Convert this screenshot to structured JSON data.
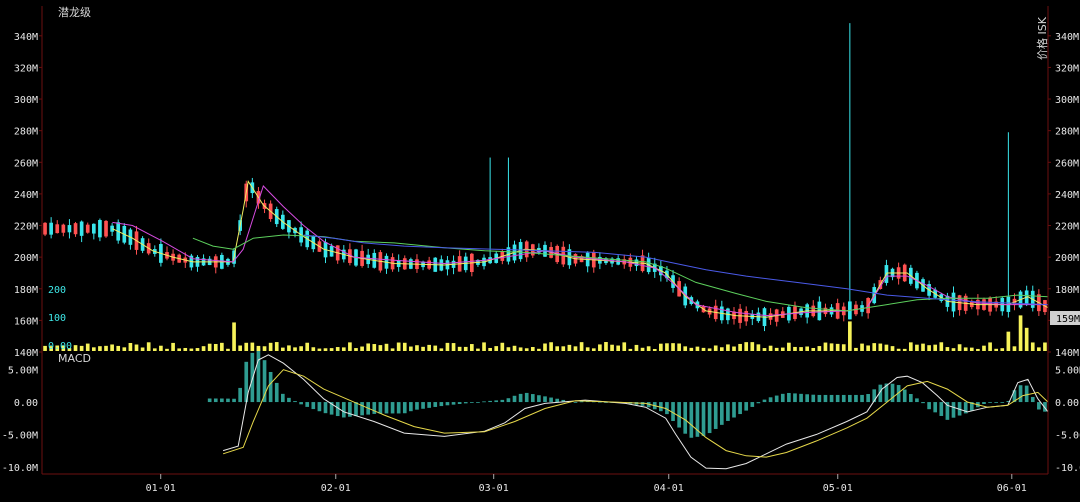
{
  "chart_data": {
    "type": "candlestick",
    "title": "潜龙级",
    "right_axis_label": "价格 ISK",
    "current_price_label": "159M",
    "macd_label": "MACD",
    "colors": {
      "up": "#ff5252",
      "down": "#39e6ec",
      "volume": "#f7f35a",
      "ma_yellow": "#f2ee60",
      "ma_magenta": "#d64be0",
      "ma_green": "#5dd05d",
      "ma_blue": "#4a5ae8",
      "macd_bar": "#2f9c91",
      "macd_dif": "#e8e8e8",
      "macd_dea": "#e6d84a",
      "axis_line": "#6b0f0f"
    },
    "x_axis": {
      "ticks": [
        {
          "label": "01-01",
          "pos": 0.118
        },
        {
          "label": "02-01",
          "pos": 0.292
        },
        {
          "label": "03-01",
          "pos": 0.449
        },
        {
          "label": "04-01",
          "pos": 0.623
        },
        {
          "label": "05-01",
          "pos": 0.791
        },
        {
          "label": "06-01",
          "pos": 0.964
        }
      ]
    },
    "price_axis": {
      "min": 140,
      "max": 350,
      "unit": "M",
      "ticks": [
        "140M",
        "160M",
        "180M",
        "200M",
        "220M",
        "240M",
        "260M",
        "280M",
        "300M",
        "320M",
        "340M"
      ]
    },
    "volume_axis": {
      "ticks": [
        "0.00",
        "100",
        "200"
      ]
    },
    "macd_axis": {
      "min": -10.5,
      "max": 6.5,
      "ticks": [
        "5.00M",
        "0.00",
        "-5.00M",
        "-10.0M"
      ]
    },
    "ma_series": [
      {
        "color": "ma_yellow",
        "points": [
          [
            0.07,
            218
          ],
          [
            0.09,
            212
          ],
          [
            0.11,
            204
          ],
          [
            0.13,
            200
          ],
          [
            0.15,
            197
          ],
          [
            0.19,
            197
          ],
          [
            0.2,
            230
          ],
          [
            0.205,
            248
          ],
          [
            0.22,
            233
          ],
          [
            0.24,
            222
          ],
          [
            0.26,
            213
          ],
          [
            0.28,
            205
          ],
          [
            0.31,
            200
          ],
          [
            0.35,
            196
          ],
          [
            0.4,
            195
          ],
          [
            0.44,
            197
          ],
          [
            0.48,
            205
          ],
          [
            0.5,
            204
          ],
          [
            0.53,
            199
          ],
          [
            0.58,
            197
          ],
          [
            0.6,
            196
          ],
          [
            0.62,
            190
          ],
          [
            0.64,
            175
          ],
          [
            0.66,
            166
          ],
          [
            0.69,
            163
          ],
          [
            0.72,
            162
          ],
          [
            0.76,
            166
          ],
          [
            0.8,
            166
          ],
          [
            0.82,
            168
          ],
          [
            0.84,
            190
          ],
          [
            0.86,
            190
          ],
          [
            0.88,
            180
          ],
          [
            0.9,
            172
          ],
          [
            0.93,
            170
          ],
          [
            0.96,
            170
          ],
          [
            0.98,
            175
          ],
          [
            1.0,
            168
          ]
        ]
      },
      {
        "color": "ma_magenta",
        "points": [
          [
            0.07,
            222
          ],
          [
            0.09,
            220
          ],
          [
            0.12,
            210
          ],
          [
            0.15,
            199
          ],
          [
            0.19,
            197
          ],
          [
            0.2,
            205
          ],
          [
            0.22,
            245
          ],
          [
            0.24,
            232
          ],
          [
            0.26,
            220
          ],
          [
            0.28,
            210
          ],
          [
            0.31,
            200
          ],
          [
            0.35,
            198
          ],
          [
            0.4,
            196
          ],
          [
            0.44,
            198
          ],
          [
            0.48,
            202
          ],
          [
            0.5,
            204
          ],
          [
            0.53,
            200
          ],
          [
            0.58,
            197
          ],
          [
            0.61,
            193
          ],
          [
            0.63,
            182
          ],
          [
            0.65,
            170
          ],
          [
            0.69,
            165
          ],
          [
            0.72,
            163
          ],
          [
            0.76,
            165
          ],
          [
            0.8,
            166
          ],
          [
            0.82,
            168
          ],
          [
            0.84,
            188
          ],
          [
            0.86,
            188
          ],
          [
            0.88,
            182
          ],
          [
            0.9,
            175
          ],
          [
            0.93,
            171
          ],
          [
            0.96,
            170
          ],
          [
            1.0,
            170
          ]
        ]
      },
      {
        "color": "ma_green",
        "points": [
          [
            0.15,
            212
          ],
          [
            0.17,
            207
          ],
          [
            0.19,
            205
          ],
          [
            0.21,
            212
          ],
          [
            0.24,
            214
          ],
          [
            0.28,
            213
          ],
          [
            0.31,
            210
          ],
          [
            0.35,
            209
          ],
          [
            0.4,
            206
          ],
          [
            0.44,
            204
          ],
          [
            0.48,
            203
          ],
          [
            0.52,
            201
          ],
          [
            0.56,
            199
          ],
          [
            0.6,
            197
          ],
          [
            0.62,
            193
          ],
          [
            0.65,
            184
          ],
          [
            0.69,
            177
          ],
          [
            0.72,
            172
          ],
          [
            0.76,
            168
          ],
          [
            0.8,
            166
          ],
          [
            0.84,
            170
          ],
          [
            0.87,
            173
          ],
          [
            0.9,
            174
          ],
          [
            0.94,
            174
          ],
          [
            0.97,
            176
          ],
          [
            1.0,
            175
          ]
        ]
      },
      {
        "color": "ma_blue",
        "points": [
          [
            0.26,
            214
          ],
          [
            0.29,
            212
          ],
          [
            0.32,
            209
          ],
          [
            0.36,
            207
          ],
          [
            0.4,
            206
          ],
          [
            0.45,
            205
          ],
          [
            0.5,
            204
          ],
          [
            0.55,
            203
          ],
          [
            0.6,
            200
          ],
          [
            0.63,
            196
          ],
          [
            0.66,
            192
          ],
          [
            0.7,
            188
          ],
          [
            0.75,
            184
          ],
          [
            0.8,
            180
          ],
          [
            0.84,
            176
          ],
          [
            0.88,
            174
          ],
          [
            0.92,
            172
          ],
          [
            0.96,
            171
          ],
          [
            1.0,
            170
          ]
        ]
      }
    ],
    "macd_dif": [
      [
        0.18,
        -7.5
      ],
      [
        0.195,
        -6.8
      ],
      [
        0.205,
        1.5
      ],
      [
        0.215,
        6.5
      ],
      [
        0.225,
        7.3
      ],
      [
        0.24,
        6.0
      ],
      [
        0.26,
        3.5
      ],
      [
        0.28,
        0.5
      ],
      [
        0.3,
        -1.5
      ],
      [
        0.33,
        -3.0
      ],
      [
        0.36,
        -4.8
      ],
      [
        0.4,
        -5.3
      ],
      [
        0.44,
        -4.5
      ],
      [
        0.46,
        -3.2
      ],
      [
        0.48,
        -1.0
      ],
      [
        0.5,
        -0.2
      ],
      [
        0.54,
        0.3
      ],
      [
        0.58,
        -0.2
      ],
      [
        0.6,
        -0.8
      ],
      [
        0.62,
        -2.5
      ],
      [
        0.63,
        -5.0
      ],
      [
        0.645,
        -8.5
      ],
      [
        0.66,
        -10.2
      ],
      [
        0.68,
        -10.3
      ],
      [
        0.7,
        -9.5
      ],
      [
        0.72,
        -8.0
      ],
      [
        0.74,
        -6.5
      ],
      [
        0.77,
        -5.0
      ],
      [
        0.8,
        -3.0
      ],
      [
        0.82,
        -1.5
      ],
      [
        0.835,
        2.0
      ],
      [
        0.85,
        3.8
      ],
      [
        0.86,
        4.0
      ],
      [
        0.875,
        3.0
      ],
      [
        0.89,
        1.0
      ],
      [
        0.9,
        -0.5
      ],
      [
        0.92,
        -1.5
      ],
      [
        0.94,
        -0.8
      ],
      [
        0.96,
        -0.5
      ],
      [
        0.97,
        3.0
      ],
      [
        0.98,
        3.5
      ],
      [
        0.99,
        0.5
      ],
      [
        1.0,
        -1.5
      ]
    ],
    "macd_dea": [
      [
        0.18,
        -8.0
      ],
      [
        0.2,
        -7.0
      ],
      [
        0.21,
        -3.0
      ],
      [
        0.225,
        2.5
      ],
      [
        0.24,
        5.0
      ],
      [
        0.26,
        4.0
      ],
      [
        0.28,
        2.0
      ],
      [
        0.31,
        0.0
      ],
      [
        0.34,
        -2.0
      ],
      [
        0.37,
        -3.8
      ],
      [
        0.4,
        -4.8
      ],
      [
        0.44,
        -4.6
      ],
      [
        0.47,
        -3.0
      ],
      [
        0.5,
        -1.0
      ],
      [
        0.53,
        0.2
      ],
      [
        0.57,
        0.0
      ],
      [
        0.6,
        -0.2
      ],
      [
        0.62,
        -1.0
      ],
      [
        0.64,
        -2.8
      ],
      [
        0.66,
        -5.5
      ],
      [
        0.68,
        -7.5
      ],
      [
        0.7,
        -8.3
      ],
      [
        0.72,
        -8.5
      ],
      [
        0.74,
        -7.8
      ],
      [
        0.77,
        -6.0
      ],
      [
        0.8,
        -4.0
      ],
      [
        0.82,
        -2.5
      ],
      [
        0.84,
        0.0
      ],
      [
        0.86,
        2.5
      ],
      [
        0.88,
        3.2
      ],
      [
        0.9,
        2.0
      ],
      [
        0.92,
        0.0
      ],
      [
        0.94,
        -0.8
      ],
      [
        0.96,
        -0.5
      ],
      [
        0.975,
        1.0
      ],
      [
        0.99,
        1.5
      ],
      [
        1.0,
        0.0
      ]
    ]
  }
}
